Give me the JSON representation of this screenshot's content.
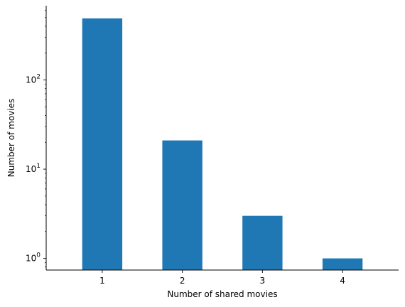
{
  "chart_data": {
    "type": "bar",
    "categories": [
      "1",
      "2",
      "3",
      "4"
    ],
    "values": [
      490,
      21,
      3,
      1
    ],
    "xlabel": "Number of shared movies",
    "ylabel": "Number of movies",
    "yscale": "log",
    "ylim": [
      0.74,
      680
    ],
    "yticks": [
      {
        "value": 1,
        "base": "10",
        "exp": "0"
      },
      {
        "value": 10,
        "base": "10",
        "exp": "1"
      },
      {
        "value": 100,
        "base": "10",
        "exp": "2"
      }
    ],
    "bar_color": "#1f77b4",
    "grid": false,
    "spines": [
      "left",
      "bottom"
    ]
  }
}
